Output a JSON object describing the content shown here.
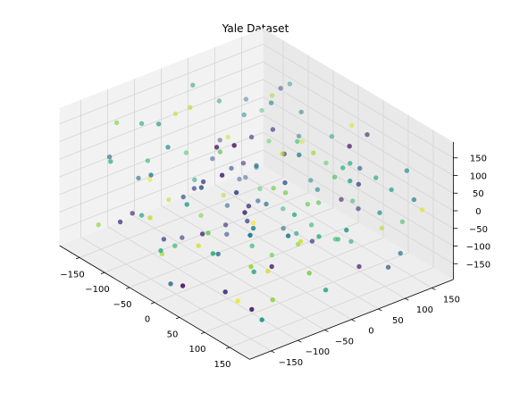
{
  "chart_data": {
    "type": "scatter",
    "projection": "3d",
    "title": "Yale Dataset",
    "xlabel": "",
    "ylabel": "",
    "zlabel": "",
    "xlim": [
      -190,
      190
    ],
    "ylim": [
      -190,
      190
    ],
    "zlim": [
      -195,
      195
    ],
    "x_ticks": [
      -150,
      -100,
      -50,
      0,
      50,
      100,
      150
    ],
    "y_ticks": [
      -150,
      -100,
      -50,
      0,
      50,
      100,
      150
    ],
    "z_ticks": [
      -150,
      -100,
      -50,
      0,
      50,
      100,
      150
    ],
    "x_tick_labels": [
      "−150",
      "−100",
      "−50",
      "0",
      "50",
      "100",
      "150"
    ],
    "y_tick_labels": [
      "−150",
      "−100",
      "−50",
      "0",
      "50",
      "100",
      "150"
    ],
    "z_tick_labels": [
      "−150",
      "−100",
      "−50",
      "0",
      "50",
      "100",
      "150"
    ],
    "grid": true,
    "colormap": "viridis",
    "colors": {
      "pane": "#f2f2f2",
      "grid": "#d5d5d5",
      "axis": "#000000"
    },
    "points": [
      {
        "x": 20,
        "y": -60,
        "z": 190,
        "c": 0.0
      },
      {
        "x": -10,
        "y": 40,
        "z": 150,
        "c": 0.15
      },
      {
        "x": 60,
        "y": -120,
        "z": 175,
        "c": 0.1
      },
      {
        "x": -80,
        "y": 120,
        "z": 160,
        "c": 0.25
      },
      {
        "x": 100,
        "y": -40,
        "z": 140,
        "c": 0.3
      },
      {
        "x": -140,
        "y": -20,
        "z": 120,
        "c": 0.9
      },
      {
        "x": 140,
        "y": 60,
        "z": 110,
        "c": 0.2
      },
      {
        "x": 30,
        "y": 150,
        "z": 130,
        "c": 0.95
      },
      {
        "x": -50,
        "y": -150,
        "z": 100,
        "c": 0.4
      },
      {
        "x": -160,
        "y": 80,
        "z": 80,
        "c": 0.5
      },
      {
        "x": 160,
        "y": -90,
        "z": 70,
        "c": 0.45
      },
      {
        "x": 80,
        "y": 100,
        "z": 95,
        "c": 0.6
      },
      {
        "x": -110,
        "y": -100,
        "z": 60,
        "c": 0.7
      },
      {
        "x": 0,
        "y": 0,
        "z": 80,
        "c": 0.35
      },
      {
        "x": 45,
        "y": -10,
        "z": 60,
        "c": 0.8
      },
      {
        "x": -30,
        "y": 80,
        "z": 40,
        "c": 0.05
      },
      {
        "x": 120,
        "y": 140,
        "z": 30,
        "c": 0.55
      },
      {
        "x": -150,
        "y": 150,
        "z": 20,
        "c": 0.65
      },
      {
        "x": 150,
        "y": -150,
        "z": 10,
        "c": 0.85
      },
      {
        "x": -60,
        "y": -60,
        "z": 0,
        "c": 0.2
      },
      {
        "x": 60,
        "y": 60,
        "z": -10,
        "c": 0.75
      },
      {
        "x": -120,
        "y": 30,
        "z": -20,
        "c": 0.3
      },
      {
        "x": 110,
        "y": -20,
        "z": -30,
        "c": 0.92
      },
      {
        "x": 10,
        "y": -110,
        "z": -40,
        "c": 0.12
      },
      {
        "x": -20,
        "y": 120,
        "z": -50,
        "c": 0.5
      },
      {
        "x": -90,
        "y": -130,
        "z": -60,
        "c": 0.6
      },
      {
        "x": 90,
        "y": 20,
        "z": -70,
        "c": 0.22
      },
      {
        "x": -170,
        "y": -40,
        "z": -80,
        "c": 0.98
      },
      {
        "x": 170,
        "y": 110,
        "z": -90,
        "c": 0.4
      },
      {
        "x": 35,
        "y": 70,
        "z": -100,
        "c": 0.68
      },
      {
        "x": -40,
        "y": -20,
        "z": -110,
        "c": 0.18
      },
      {
        "x": 70,
        "y": -70,
        "z": -120,
        "c": 0.58
      },
      {
        "x": -100,
        "y": 100,
        "z": -130,
        "c": 0.72
      },
      {
        "x": 130,
        "y": -130,
        "z": -140,
        "c": 0.08
      },
      {
        "x": -130,
        "y": 60,
        "z": -150,
        "c": 0.88
      },
      {
        "x": 0,
        "y": -160,
        "z": -160,
        "c": 0.33
      },
      {
        "x": 50,
        "y": 130,
        "z": -170,
        "c": 0.62
      },
      {
        "x": -70,
        "y": 10,
        "z": -180,
        "c": 0.27
      },
      {
        "x": 95,
        "y": 85,
        "z": 165,
        "c": 0.03
      },
      {
        "x": -115,
        "y": -75,
        "z": 145,
        "c": 0.52
      },
      {
        "x": 25,
        "y": 25,
        "z": 120,
        "c": 0.9
      },
      {
        "x": -55,
        "y": 135,
        "z": 105,
        "c": 0.42
      },
      {
        "x": 135,
        "y": -55,
        "z": 88,
        "c": 0.66
      },
      {
        "x": -15,
        "y": -85,
        "z": 72,
        "c": 0.16
      },
      {
        "x": 75,
        "y": -160,
        "z": 48,
        "c": 0.78
      },
      {
        "x": -165,
        "y": -120,
        "z": 36,
        "c": 0.36
      },
      {
        "x": 160,
        "y": 160,
        "z": -5,
        "c": 0.96
      },
      {
        "x": -85,
        "y": 55,
        "z": -18,
        "c": 0.11
      },
      {
        "x": 15,
        "y": 100,
        "z": -35,
        "c": 0.47
      },
      {
        "x": 115,
        "y": 45,
        "z": -58,
        "c": 0.7
      },
      {
        "x": -35,
        "y": -140,
        "z": -75,
        "c": 0.24
      },
      {
        "x": -145,
        "y": 20,
        "z": -95,
        "c": 0.56
      },
      {
        "x": 145,
        "y": -105,
        "z": -115,
        "c": 0.83
      },
      {
        "x": -5,
        "y": 55,
        "z": -135,
        "c": 0.38
      },
      {
        "x": 55,
        "y": -30,
        "z": -155,
        "c": 0.93
      },
      {
        "x": -95,
        "y": -50,
        "z": -175,
        "c": 0.19
      },
      {
        "x": 105,
        "y": 125,
        "z": 60,
        "c": 0.61
      },
      {
        "x": -125,
        "y": 140,
        "z": -40,
        "c": 0.74
      },
      {
        "x": 40,
        "y": -140,
        "z": 135,
        "c": 0.29
      },
      {
        "x": -65,
        "y": 90,
        "z": 170,
        "c": 0.86
      },
      {
        "x": 85,
        "y": -85,
        "z": 25,
        "c": 0.44
      },
      {
        "x": -180,
        "y": 100,
        "z": -60,
        "c": 0.14
      },
      {
        "x": 180,
        "y": 0,
        "z": 50,
        "c": 0.54
      },
      {
        "x": 5,
        "y": 175,
        "z": -120,
        "c": 0.67
      },
      {
        "x": -25,
        "y": -175,
        "z": 15,
        "c": 0.91
      },
      {
        "x": 125,
        "y": 75,
        "z": -145,
        "c": 0.09
      },
      {
        "x": -75,
        "y": -95,
        "z": 125,
        "c": 0.49
      },
      {
        "x": 65,
        "y": 35,
        "z": 5,
        "c": 0.77
      },
      {
        "x": -45,
        "y": 45,
        "z": -85,
        "c": 0.31
      },
      {
        "x": 155,
        "y": 30,
        "z": 150,
        "c": 0.59
      },
      {
        "x": -155,
        "y": -150,
        "z": -130,
        "c": 0.84
      },
      {
        "x": 30,
        "y": -45,
        "z": -25,
        "c": 0.21
      },
      {
        "x": -105,
        "y": 75,
        "z": 90,
        "c": 0.46
      },
      {
        "x": 10,
        "y": -15,
        "z": -65,
        "c": 0.99
      },
      {
        "x": 100,
        "y": -115,
        "z": 100,
        "c": 0.13
      },
      {
        "x": -10,
        "y": 150,
        "z": 65,
        "c": 0.57
      },
      {
        "x": -135,
        "y": -5,
        "z": 5,
        "c": 0.73
      },
      {
        "x": 135,
        "y": 120,
        "z": -165,
        "c": 0.26
      },
      {
        "x": -60,
        "y": -120,
        "z": -150,
        "c": 0.87
      },
      {
        "x": 80,
        "y": 5,
        "z": 175,
        "c": 0.41
      },
      {
        "x": -30,
        "y": 20,
        "z": -185,
        "c": 0.64
      },
      {
        "x": 50,
        "y": 160,
        "z": 115,
        "c": 0.06
      },
      {
        "x": -170,
        "y": 40,
        "z": 140,
        "c": 0.51
      },
      {
        "x": 170,
        "y": -60,
        "z": -45,
        "c": 0.79
      },
      {
        "x": 20,
        "y": -90,
        "z": -100,
        "c": 0.34
      },
      {
        "x": -80,
        "y": 160,
        "z": -15,
        "c": 0.94
      },
      {
        "x": 120,
        "y": -170,
        "z": -75,
        "c": 0.17
      },
      {
        "x": -120,
        "y": -160,
        "z": 85,
        "c": 0.63
      },
      {
        "x": 60,
        "y": 90,
        "z": 45,
        "c": 0.71
      },
      {
        "x": -50,
        "y": 0,
        "z": 30,
        "c": 0.28
      },
      {
        "x": 90,
        "y": 150,
        "z": -110,
        "c": 0.89
      },
      {
        "x": -150,
        "y": -80,
        "z": -35,
        "c": 0.37
      },
      {
        "x": 150,
        "y": 90,
        "z": 20,
        "c": 0.53
      },
      {
        "x": -15,
        "y": -60,
        "z": 155,
        "c": 0.02
      },
      {
        "x": 40,
        "y": 110,
        "z": -160,
        "c": 0.69
      },
      {
        "x": -100,
        "y": -10,
        "z": -140,
        "c": 0.81
      },
      {
        "x": 110,
        "y": -140,
        "z": 180,
        "c": 0.23
      },
      {
        "x": -40,
        "y": 65,
        "z": 185,
        "c": 0.43
      },
      {
        "x": 70,
        "y": -100,
        "z": -185,
        "c": 0.97
      },
      {
        "x": -160,
        "y": 130,
        "z": 55,
        "c": 0.32
      },
      {
        "x": 160,
        "y": -20,
        "z": -125,
        "c": 0.6
      },
      {
        "x": 0,
        "y": 130,
        "z": 10,
        "c": 0.76
      },
      {
        "x": -90,
        "y": -170,
        "z": -55,
        "c": 0.15
      },
      {
        "x": 140,
        "y": 150,
        "z": 95,
        "c": 0.48
      },
      {
        "x": -140,
        "y": -130,
        "z": 160,
        "c": 0.82
      },
      {
        "x": 25,
        "y": -5,
        "z": -5,
        "c": 0.39
      },
      {
        "x": -70,
        "y": 115,
        "z": -170,
        "c": 0.65
      },
      {
        "x": 95,
        "y": -60,
        "z": -90,
        "c": 0.1
      },
      {
        "x": -5,
        "y": -125,
        "z": 40,
        "c": 0.55
      },
      {
        "x": 55,
        "y": 55,
        "z": 130,
        "c": 0.85
      },
      {
        "x": -125,
        "y": 85,
        "z": -115,
        "c": 0.3
      },
      {
        "x": 125,
        "y": 0,
        "z": -15,
        "c": 0.62
      },
      {
        "x": -35,
        "y": -35,
        "z": 110,
        "c": 0.74
      },
      {
        "x": 75,
        "y": 120,
        "z": -50,
        "c": 0.2
      },
      {
        "x": -175,
        "y": 0,
        "z": -165,
        "c": 0.9
      },
      {
        "x": 175,
        "y": -175,
        "z": 135,
        "c": 0.45
      },
      {
        "x": -20,
        "y": 95,
        "z": 75,
        "c": 0.68
      },
      {
        "x": 35,
        "y": -170,
        "z": -130,
        "c": 0.04
      },
      {
        "x": -110,
        "y": 165,
        "z": 120,
        "c": 0.5
      },
      {
        "x": 115,
        "y": 165,
        "z": -80,
        "c": 0.72
      },
      {
        "x": -55,
        "y": -85,
        "z": -5,
        "c": 0.25
      },
      {
        "x": 5,
        "y": 70,
        "z": -150,
        "c": 0.58
      },
      {
        "x": 85,
        "y": -25,
        "z": 90,
        "c": 0.8
      },
      {
        "x": -85,
        "y": 25,
        "z": -120,
        "c": 0.36
      },
      {
        "x": 45,
        "y": -150,
        "z": -20,
        "c": 0.95
      },
      {
        "x": -130,
        "y": -110,
        "z": -100,
        "c": 0.12
      },
      {
        "x": 130,
        "y": 40,
        "z": 160,
        "c": 0.66
      },
      {
        "x": -65,
        "y": 140,
        "z": 25,
        "c": 0.41
      },
      {
        "x": 15,
        "y": 15,
        "z": -170,
        "c": 0.78
      },
      {
        "x": -145,
        "y": 115,
        "z": -145,
        "c": 0.27
      },
      {
        "x": 145,
        "y": -125,
        "z": -160,
        "c": 0.52
      },
      {
        "x": -95,
        "y": -35,
        "z": 185,
        "c": 0.88
      },
      {
        "x": 65,
        "y": -75,
        "z": 65,
        "c": 0.18
      },
      {
        "x": -25,
        "y": -155,
        "z": -90,
        "c": 0.61
      },
      {
        "x": 105,
        "y": 95,
        "z": 105,
        "c": 0.34
      },
      {
        "x": -105,
        "y": 45,
        "z": 45,
        "c": 0.93
      },
      {
        "x": 25,
        "y": 135,
        "z": -75,
        "c": 0.07
      },
      {
        "x": -45,
        "y": -110,
        "z": -120,
        "c": 0.7
      },
      {
        "x": 165,
        "y": 140,
        "z": 40,
        "c": 0.44
      },
      {
        "x": -165,
        "y": -60,
        "z": 95,
        "c": 0.57
      },
      {
        "x": 35,
        "y": 45,
        "z": -140,
        "c": 0.83
      },
      {
        "x": -15,
        "y": 5,
        "z": 145,
        "c": 0.22
      },
      {
        "x": 90,
        "y": -165,
        "z": 5,
        "c": 0.64
      },
      {
        "x": -75,
        "y": 70,
        "z": -30,
        "c": 0.47
      }
    ]
  }
}
